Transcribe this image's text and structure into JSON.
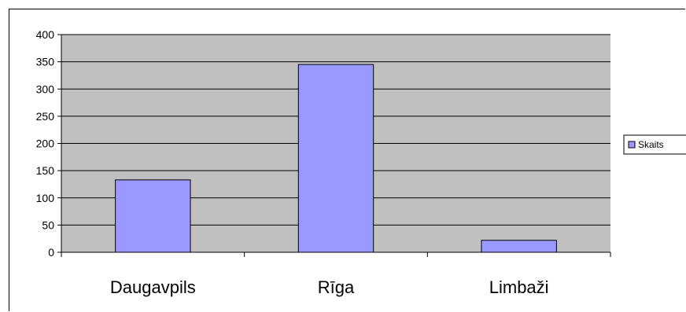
{
  "chart_data": {
    "type": "bar",
    "title": "",
    "xlabel": "",
    "ylabel": "",
    "categories": [
      "Daugavpils",
      "Rīga",
      "Limbaži"
    ],
    "series": [
      {
        "name": "Skaits",
        "values": [
          133,
          345,
          22
        ]
      }
    ],
    "ylim": [
      0,
      400
    ],
    "yticks": [
      0,
      50,
      100,
      150,
      200,
      250,
      300,
      350,
      400
    ],
    "grid": true,
    "legend_position": "right",
    "colors": {
      "bar_fill": "#9999ff",
      "bar_stroke": "#000000",
      "plot_background": "#c0c0c0",
      "gridline": "#000000"
    }
  }
}
